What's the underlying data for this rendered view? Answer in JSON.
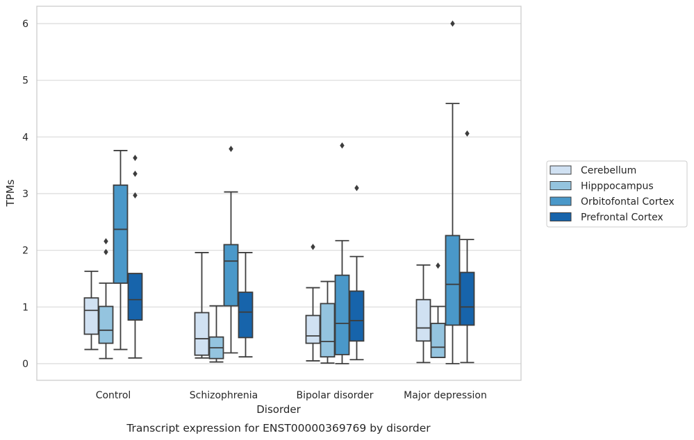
{
  "caption": "Transcript expression for ENST00000369769 by disorder",
  "chart_data": {
    "type": "box",
    "xlabel": "Disorder",
    "ylabel": "TPMs",
    "ylim": [
      -0.3,
      6.3
    ],
    "yticks": [
      "0",
      "1",
      "2",
      "3",
      "4",
      "5",
      "6"
    ],
    "ytick_values": [
      0,
      1,
      2,
      3,
      4,
      5,
      6
    ],
    "grid": "horizontal",
    "legend_position": "right",
    "categories": [
      "Control",
      "Schizophrenia",
      "Bipolar disorder",
      "Major depression"
    ],
    "series": [
      {
        "name": "Cerebellum",
        "color": "#d0e1f2",
        "boxes": [
          {
            "whislo": 0.25,
            "q1": 0.52,
            "med": 0.94,
            "q3": 1.16,
            "whishi": 1.63,
            "fliers": []
          },
          {
            "whislo": 0.1,
            "q1": 0.15,
            "med": 0.44,
            "q3": 0.9,
            "whishi": 1.96,
            "fliers": []
          },
          {
            "whislo": 0.05,
            "q1": 0.36,
            "med": 0.49,
            "q3": 0.85,
            "whishi": 1.34,
            "fliers": [
              2.06
            ]
          },
          {
            "whislo": 0.02,
            "q1": 0.4,
            "med": 0.63,
            "q3": 1.13,
            "whishi": 1.74,
            "fliers": []
          }
        ]
      },
      {
        "name": "Hipppocampus",
        "color": "#94c4df",
        "boxes": [
          {
            "whislo": 0.09,
            "q1": 0.36,
            "med": 0.59,
            "q3": 1.01,
            "whishi": 1.42,
            "fliers": [
              1.97,
              2.16
            ]
          },
          {
            "whislo": 0.03,
            "q1": 0.09,
            "med": 0.28,
            "q3": 0.47,
            "whishi": 1.02,
            "fliers": []
          },
          {
            "whislo": 0.01,
            "q1": 0.12,
            "med": 0.39,
            "q3": 1.06,
            "whishi": 1.45,
            "fliers": []
          },
          {
            "whislo": 0.11,
            "q1": 0.11,
            "med": 0.29,
            "q3": 0.71,
            "whishi": 1.01,
            "fliers": [
              1.73
            ]
          }
        ]
      },
      {
        "name": "Orbitofontal Cortex",
        "color": "#4a98c9",
        "boxes": [
          {
            "whislo": 0.25,
            "q1": 1.42,
            "med": 2.37,
            "q3": 3.15,
            "whishi": 3.76,
            "fliers": []
          },
          {
            "whislo": 0.19,
            "q1": 1.02,
            "med": 1.81,
            "q3": 2.1,
            "whishi": 3.03,
            "fliers": [
              3.79
            ]
          },
          {
            "whislo": 0.0,
            "q1": 0.16,
            "med": 0.71,
            "q3": 1.56,
            "whishi": 2.17,
            "fliers": [
              3.85
            ]
          },
          {
            "whislo": 0.0,
            "q1": 0.68,
            "med": 1.4,
            "q3": 2.26,
            "whishi": 4.59,
            "fliers": [
              6.0
            ]
          }
        ]
      },
      {
        "name": "Prefrontal Cortex",
        "color": "#1764ab",
        "boxes": [
          {
            "whislo": 0.1,
            "q1": 0.77,
            "med": 1.13,
            "q3": 1.59,
            "whishi": 1.59,
            "fliers": [
              2.97,
              3.35,
              3.63
            ]
          },
          {
            "whislo": 0.12,
            "q1": 0.46,
            "med": 0.91,
            "q3": 1.26,
            "whishi": 1.96,
            "fliers": []
          },
          {
            "whislo": 0.07,
            "q1": 0.4,
            "med": 0.76,
            "q3": 1.28,
            "whishi": 1.89,
            "fliers": [
              3.1
            ]
          },
          {
            "whislo": 0.02,
            "q1": 0.68,
            "med": 1.0,
            "q3": 1.61,
            "whishi": 2.19,
            "fliers": [
              4.06
            ]
          }
        ]
      }
    ]
  }
}
